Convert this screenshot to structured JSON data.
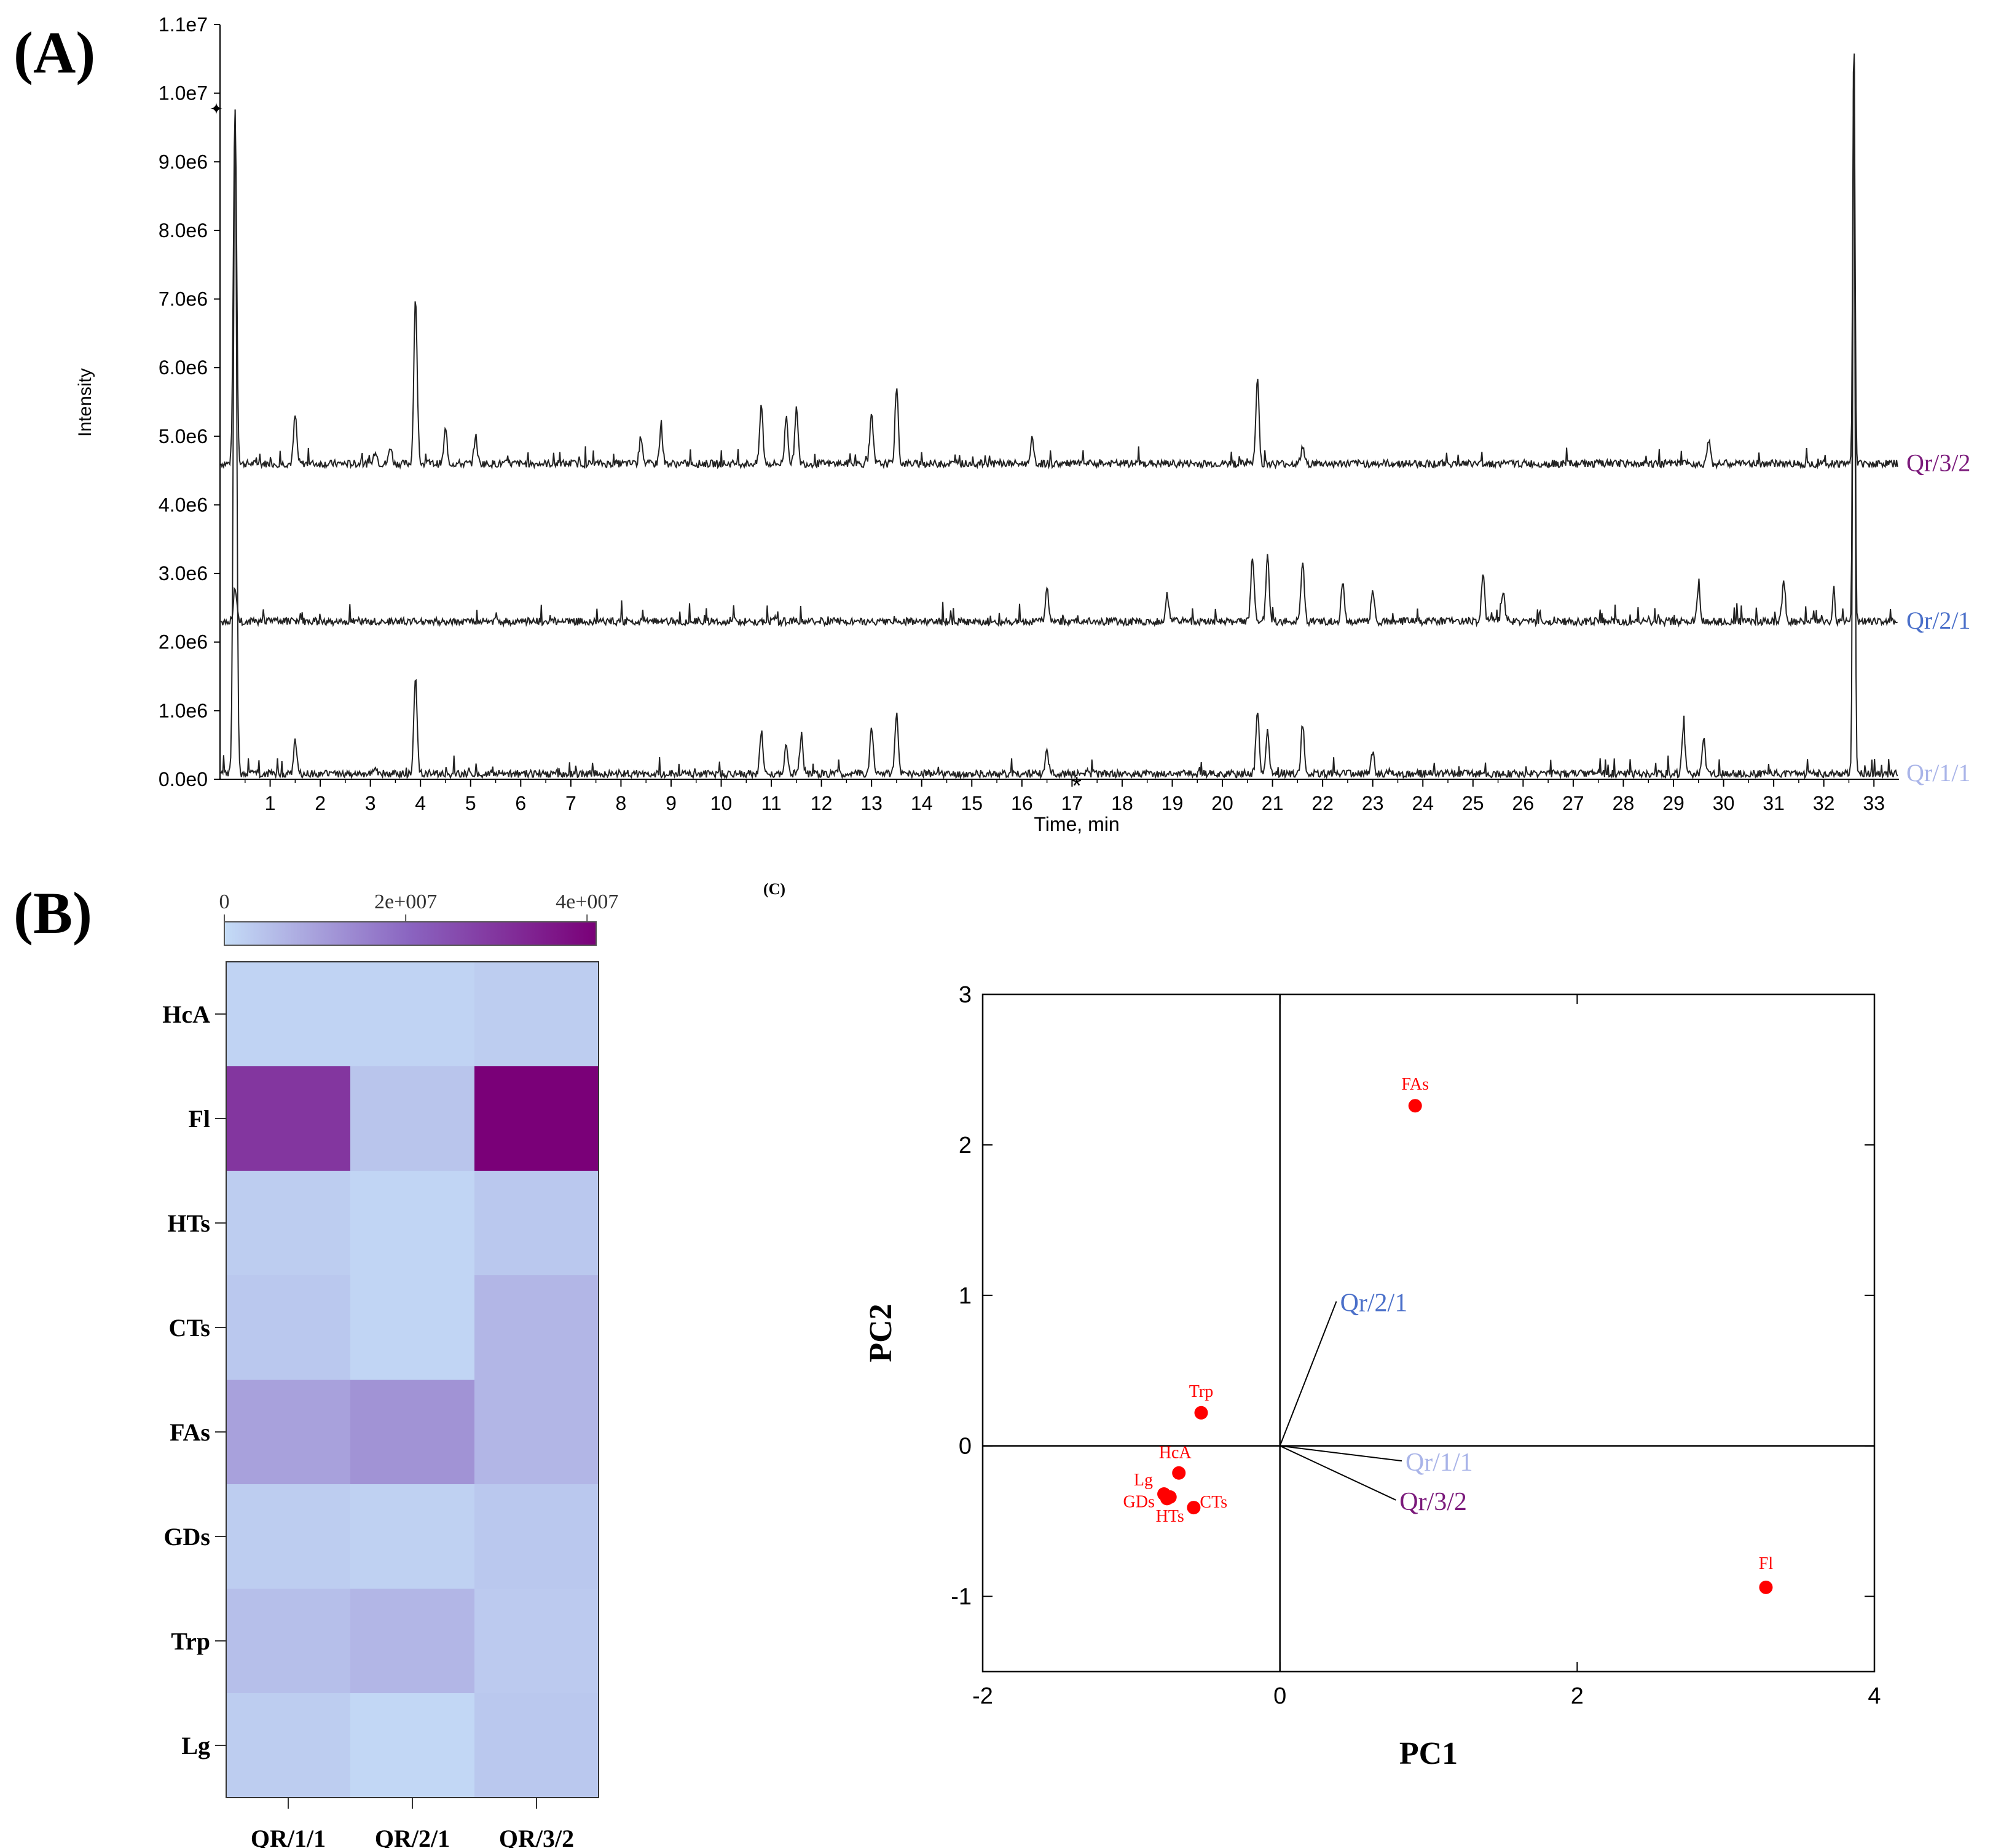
{
  "panels": {
    "a": "(A)",
    "b": "(B)",
    "c": "(C)"
  },
  "chromatogram": {
    "y_label": "Intensity",
    "x_label": "Time, min",
    "y_ticks": [
      "0.0e0",
      "1.0e6",
      "2.0e6",
      "3.0e6",
      "4.0e6",
      "5.0e6",
      "6.0e6",
      "7.0e6",
      "8.0e6",
      "9.0e6",
      "1.0e7",
      "1.1e7"
    ],
    "x_ticks": [
      "1",
      "2",
      "3",
      "4",
      "5",
      "6",
      "7",
      "8",
      "9",
      "10",
      "11",
      "12",
      "13",
      "14",
      "15",
      "16",
      "17",
      "18",
      "19",
      "20",
      "21",
      "22",
      "23",
      "24",
      "25",
      "26",
      "27",
      "28",
      "29",
      "30",
      "31",
      "32",
      "33"
    ],
    "traces": [
      {
        "name": "Qr/3/2",
        "color": "#7b1a7b",
        "baseline": 4600000
      },
      {
        "name": "Qr/2/1",
        "color": "#4a6fc9",
        "baseline": 2300000
      },
      {
        "name": "Qr/1/1",
        "color": "#a9b4e8",
        "baseline": 80000
      }
    ]
  },
  "chart_data": [
    {
      "type": "line",
      "title": "",
      "xlabel": "Time, min",
      "ylabel": "Intensity",
      "xlim": [
        0,
        33.5
      ],
      "ylim": [
        0,
        11000000
      ],
      "series": [
        {
          "name": "Qr/3/2",
          "baseline": 4600000,
          "peaks": [
            [
              0.3,
              9800000
            ],
            [
              1.5,
              5300000
            ],
            [
              3.1,
              4800000
            ],
            [
              3.4,
              4850000
            ],
            [
              3.9,
              7050000
            ],
            [
              4.5,
              5100000
            ],
            [
              5.1,
              5000000
            ],
            [
              8.4,
              5000000
            ],
            [
              8.8,
              5100000
            ],
            [
              10.8,
              5450000
            ],
            [
              11.3,
              5300000
            ],
            [
              11.5,
              5400000
            ],
            [
              13.0,
              5300000
            ],
            [
              13.5,
              5700000
            ],
            [
              16.2,
              4950000
            ],
            [
              20.7,
              5830000
            ],
            [
              21.6,
              4850000
            ],
            [
              29.7,
              4950000
            ],
            [
              32.6,
              11000000
            ]
          ]
        },
        {
          "name": "Qr/2/1",
          "baseline": 2300000,
          "peaks": [
            [
              0.3,
              2800000
            ],
            [
              16.5,
              2800000
            ],
            [
              18.9,
              2700000
            ],
            [
              20.6,
              3250000
            ],
            [
              20.9,
              3250000
            ],
            [
              21.6,
              3200000
            ],
            [
              22.4,
              2900000
            ],
            [
              23.0,
              2750000
            ],
            [
              25.2,
              3000000
            ],
            [
              25.6,
              2750000
            ],
            [
              29.5,
              2750000
            ],
            [
              31.2,
              2900000
            ],
            [
              32.2,
              2800000
            ],
            [
              32.6,
              11000000
            ]
          ]
        },
        {
          "name": "Qr/1/1",
          "baseline": 80000,
          "peaks": [
            [
              0.3,
              9800000
            ],
            [
              1.5,
              550000
            ],
            [
              3.1,
              200000
            ],
            [
              3.9,
              1500000
            ],
            [
              10.8,
              700000
            ],
            [
              11.3,
              500000
            ],
            [
              11.6,
              650000
            ],
            [
              13.0,
              750000
            ],
            [
              13.5,
              950000
            ],
            [
              16.5,
              400000
            ],
            [
              20.7,
              1000000
            ],
            [
              20.9,
              700000
            ],
            [
              21.6,
              800000
            ],
            [
              23.0,
              400000
            ],
            [
              29.2,
              700000
            ],
            [
              29.6,
              600000
            ],
            [
              32.6,
              11000000
            ]
          ]
        }
      ]
    },
    {
      "type": "heatmap",
      "title": "",
      "colorbar_ticks": [
        "0",
        "2e+007",
        "4e+007"
      ],
      "colorbar_range": [
        0,
        41000000
      ],
      "colors": {
        "low": "#c4dcf7",
        "mid": "#8a64c0",
        "high": "#7a0078"
      },
      "rows": [
        "HcA",
        "Fl",
        "HTs",
        "CTs",
        "FAs",
        "GDs",
        "Trp",
        "Lg"
      ],
      "columns": [
        "QR/1/1",
        "QR/2/1",
        "QR/3/2"
      ],
      "values": [
        [
          1500000,
          1500000,
          2500000
        ],
        [
          30000000,
          4000000,
          41000000
        ],
        [
          2500000,
          1200000,
          3500000
        ],
        [
          3500000,
          1200000,
          6500000
        ],
        [
          10000000,
          12500000,
          6500000
        ],
        [
          2500000,
          1800000,
          3500000
        ],
        [
          5000000,
          6500000,
          3000000
        ],
        [
          2500000,
          800000,
          3500000
        ]
      ]
    },
    {
      "type": "scatter",
      "title": "",
      "xlabel": "PC1",
      "ylabel": "PC2",
      "xlim": [
        -2,
        4
      ],
      "ylim": [
        -1.5,
        3
      ],
      "x_ticks": [
        "-2",
        "0",
        "2",
        "4"
      ],
      "y_ticks": [
        "-1",
        "0",
        "1",
        "2",
        "3"
      ],
      "point_color": "#ff0000",
      "points": [
        {
          "label": "FAs",
          "x": 0.91,
          "y": 2.26
        },
        {
          "label": "Trp",
          "x": -0.53,
          "y": 0.22
        },
        {
          "label": "HcA",
          "x": -0.68,
          "y": -0.18
        },
        {
          "label": "Lg",
          "x": -0.78,
          "y": -0.32
        },
        {
          "label": "GDs",
          "x": -0.76,
          "y": -0.35
        },
        {
          "label": "HTs",
          "x": -0.74,
          "y": -0.34
        },
        {
          "label": "CTs",
          "x": -0.58,
          "y": -0.41
        },
        {
          "label": "Fl",
          "x": 3.27,
          "y": -0.94
        }
      ],
      "loadings": [
        {
          "label": "Qr/2/1",
          "x": 0.38,
          "y": 0.96,
          "color": "#4a6fc9"
        },
        {
          "label": "Qr/1/1",
          "x": 0.82,
          "y": -0.1,
          "color": "#a9b4e8"
        },
        {
          "label": "Qr/3/2",
          "x": 0.78,
          "y": -0.36,
          "color": "#7b1a7b"
        }
      ]
    }
  ]
}
